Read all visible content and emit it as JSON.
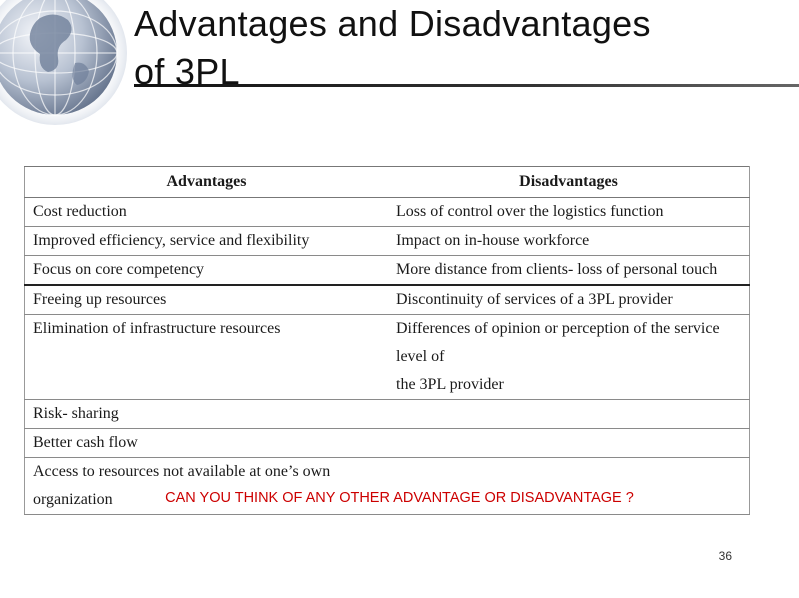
{
  "slide": {
    "title_line1": "Advantages and Disadvantages",
    "title_line2": "of 3PL",
    "question": "CAN YOU THINK OF ANY OTHER  ADVANTAGE OR DISADVANTAGE ?",
    "page_number": "36"
  },
  "table": {
    "headers": [
      "Advantages",
      "Disadvantages"
    ],
    "rows": [
      {
        "advantage": "Cost reduction",
        "disadvantage": "Loss of control over the logistics function"
      },
      {
        "advantage": "Improved efficiency, service and flexibility",
        "disadvantage": "Impact on in-house workforce"
      },
      {
        "advantage": "Focus on core competency",
        "disadvantage": "More distance from clients- loss of personal touch"
      },
      {
        "advantage": "Freeing up resources",
        "disadvantage": "Discontinuity of services of a 3PL provider"
      },
      {
        "advantage": "Elimination of infrastructure resources",
        "disadvantage": "Differences of opinion or perception of the service level of",
        "disadvantage_line2": "the 3PL provider"
      },
      {
        "advantage": "Risk- sharing",
        "disadvantage": ""
      },
      {
        "advantage": "Better cash flow",
        "disadvantage": ""
      },
      {
        "advantage": "Access to resources not available at one’s own organization",
        "disadvantage": ""
      }
    ]
  },
  "colors": {
    "question_text": "#cc0000",
    "globe_tint": "#8a9bb5"
  },
  "icons": {
    "decoration": "globe-icon"
  }
}
